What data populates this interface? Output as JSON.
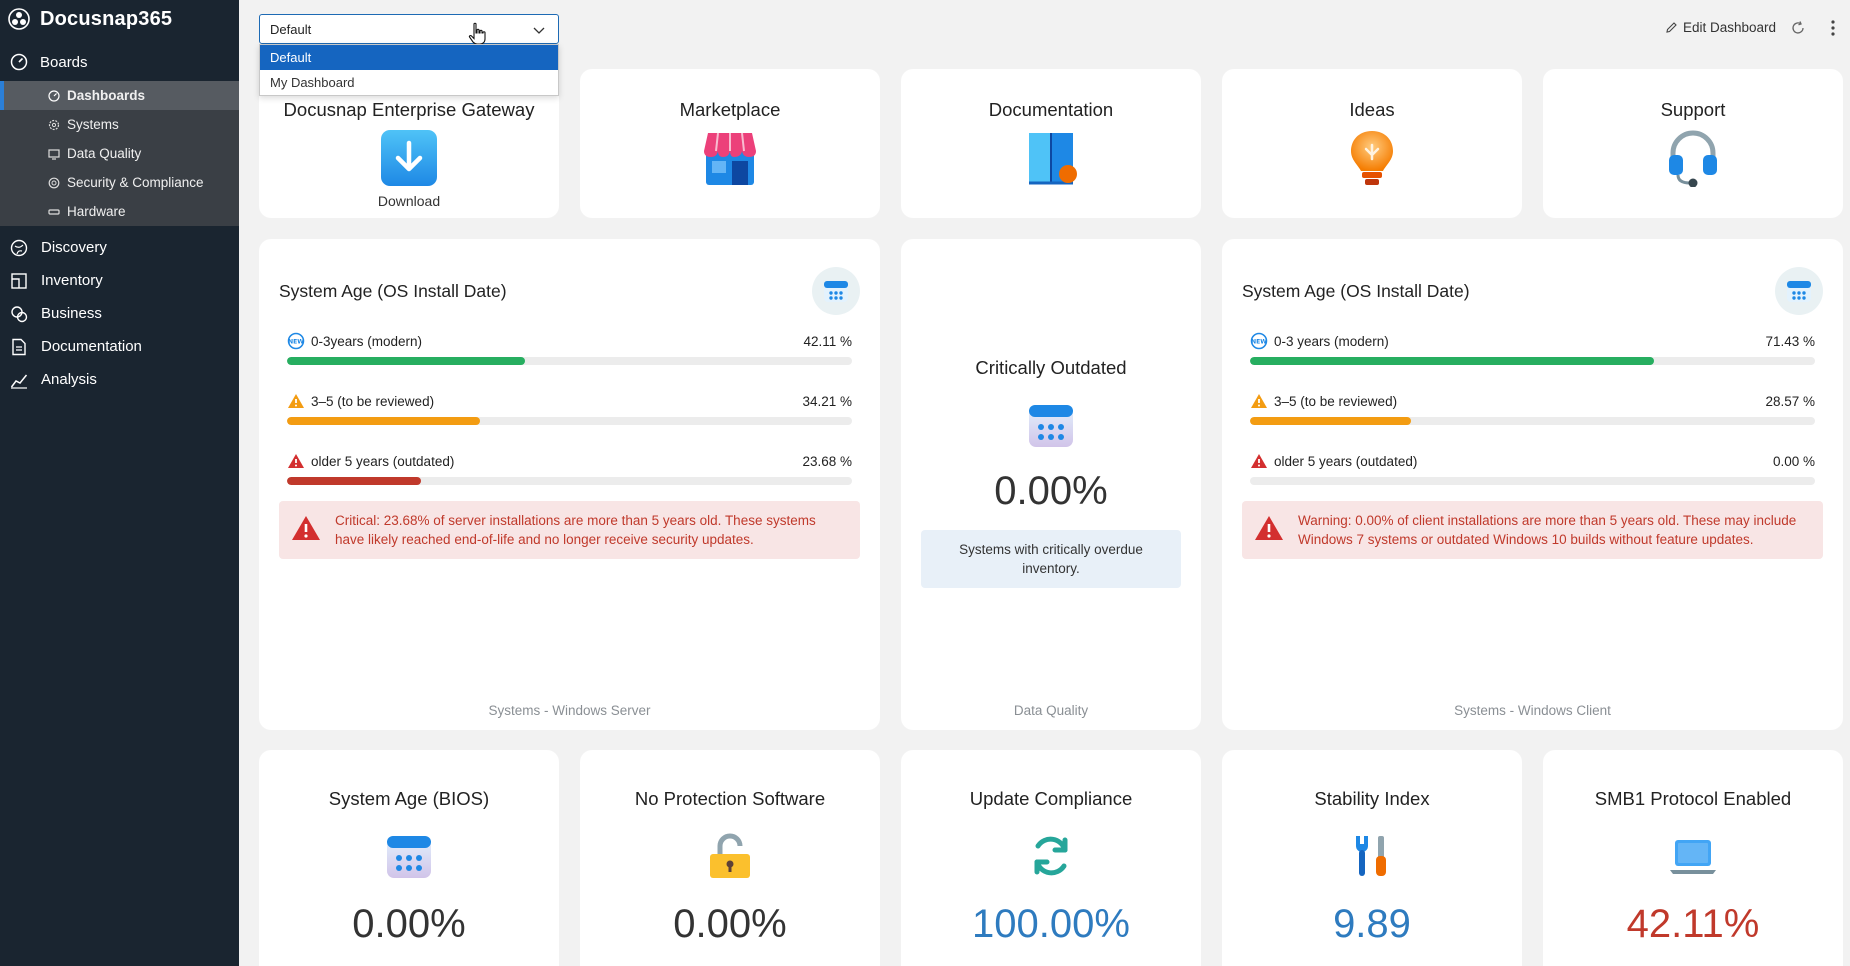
{
  "sidebar": {
    "brand": "Docusnap365",
    "boards_label": "Boards",
    "sub_items": [
      "Dashboards",
      "Systems",
      "Data Quality",
      "Security & Compliance",
      "Hardware"
    ],
    "nav_items": [
      "Discovery",
      "Inventory",
      "Business",
      "Documentation",
      "Analysis"
    ]
  },
  "topbar": {
    "selected_dashboard": "Default",
    "options": [
      "Default",
      "My Dashboard"
    ],
    "edit_label": "Edit Dashboard"
  },
  "links": [
    {
      "title": "Docusnap Enterprise Gateway",
      "sub": "Download",
      "icon": "download-icon"
    },
    {
      "title": "Marketplace",
      "icon": "store-icon"
    },
    {
      "title": "Documentation",
      "icon": "book-icon"
    },
    {
      "title": "Ideas",
      "icon": "lightbulb-icon"
    },
    {
      "title": "Support",
      "icon": "headset-icon"
    }
  ],
  "server_age": {
    "title": "System Age (OS Install Date)",
    "rows": [
      {
        "label": "0-3years (modern)",
        "value": "42.11 %",
        "pct": 42.11,
        "color": "#27ae60"
      },
      {
        "label": "3–5 (to be reviewed)",
        "value": "34.21 %",
        "pct": 34.21,
        "color": "#f39c12"
      },
      {
        "label": "older 5 years (outdated)",
        "value": "23.68 %",
        "pct": 23.68,
        "color": "#c0392b"
      }
    ],
    "alert": "Critical: 23.68% of server installations are more than 5 years old. These systems have likely reached end-of-life and no longer receive security updates.",
    "footer": "Systems - Windows Server"
  },
  "critical": {
    "title": "Critically Outdated",
    "value": "0.00%",
    "info": "Systems with critically overdue inventory.",
    "footer": "Data Quality"
  },
  "client_age": {
    "title": "System Age (OS Install Date)",
    "rows": [
      {
        "label": "0-3 years (modern)",
        "value": "71.43 %",
        "pct": 71.43,
        "color": "#27ae60"
      },
      {
        "label": "3–5 (to be reviewed)",
        "value": "28.57 %",
        "pct": 28.57,
        "color": "#f39c12"
      },
      {
        "label": "older 5 years (outdated)",
        "value": "0.00 %",
        "pct": 0,
        "color": "#c0392b"
      }
    ],
    "alert": "Warning: 0.00% of client installations are more than 5 years old. These may include Windows 7 systems or outdated Windows 10 builds without feature updates.",
    "footer": "Systems - Windows Client"
  },
  "kpis": [
    {
      "title": "System Age (BIOS)",
      "value": "0.00%",
      "color": "#333333",
      "icon": "calendar-icon"
    },
    {
      "title": "No Protection Software",
      "value": "0.00%",
      "color": "#333333",
      "icon": "padlock-open-icon"
    },
    {
      "title": "Update Compliance",
      "value": "100.00%",
      "color": "#2e7bbf",
      "icon": "sync-icon"
    },
    {
      "title": "Stability Index",
      "value": "9.89",
      "color": "#2e7bbf",
      "icon": "tools-icon"
    },
    {
      "title": "SMB1 Protocol Enabled",
      "value": "42.11%",
      "color": "#c0392b",
      "icon": "laptop-icon"
    }
  ]
}
